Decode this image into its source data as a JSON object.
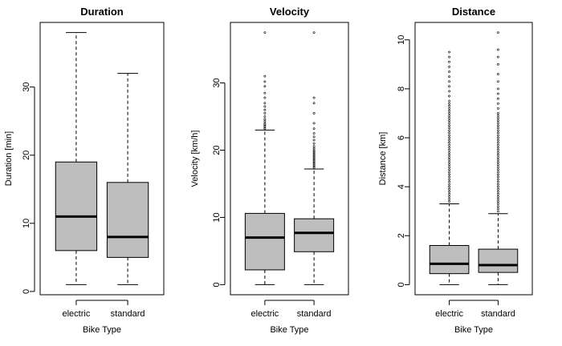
{
  "chart_data": [
    {
      "type": "boxplot",
      "title": "Duration",
      "xlabel": "Bike Type",
      "ylabel": "Duration [min]",
      "ylim": [
        0,
        40
      ],
      "yticks": [
        0,
        10,
        20,
        30
      ],
      "categories": [
        "electric",
        "standard"
      ],
      "color": "#bebebe",
      "boxes": [
        {
          "category": "electric",
          "whisker_low": 1,
          "q1": 6,
          "median": 11,
          "q3": 19,
          "whisker_high": 38,
          "outliers": []
        },
        {
          "category": "standard",
          "whisker_low": 1,
          "q1": 5,
          "median": 8,
          "q3": 16,
          "whisker_high": 32,
          "outliers": []
        }
      ]
    },
    {
      "type": "boxplot",
      "title": "Velocity",
      "xlabel": "Bike Type",
      "ylabel": "Velocity [km/h]",
      "ylim": [
        0,
        40
      ],
      "yticks": [
        0,
        10,
        20,
        30
      ],
      "categories": [
        "electric",
        "standard"
      ],
      "color": "#bebebe",
      "boxes": [
        {
          "category": "electric",
          "whisker_low": 0,
          "q1": 2.2,
          "median": 7,
          "q3": 10.6,
          "whisker_high": 23,
          "outliers": [
            23.2,
            23.4,
            23.6,
            23.8,
            24.0,
            24.3,
            24.6,
            25.0,
            25.5,
            26.0,
            26.5,
            27.0,
            27.8,
            28.5,
            29.5,
            30.2,
            31.0,
            37.5
          ]
        },
        {
          "category": "standard",
          "whisker_low": 0,
          "q1": 4.9,
          "median": 7.7,
          "q3": 9.8,
          "whisker_high": 17.2,
          "outliers": [
            17.4,
            17.6,
            17.8,
            18.0,
            18.2,
            18.4,
            18.6,
            18.8,
            19.0,
            19.2,
            19.4,
            19.6,
            19.8,
            20.0,
            20.3,
            20.6,
            21.0,
            21.5,
            22.0,
            22.5,
            23.2,
            24.0,
            25.5,
            27.0,
            27.8,
            37.5
          ]
        }
      ]
    },
    {
      "type": "boxplot",
      "title": "Distance",
      "xlabel": "Bike Type",
      "ylabel": "Distance [km]",
      "ylim": [
        0,
        10.5
      ],
      "yticks": [
        0,
        2,
        4,
        6,
        8,
        10
      ],
      "categories": [
        "electric",
        "standard"
      ],
      "color": "#bebebe",
      "boxes": [
        {
          "category": "electric",
          "whisker_low": 0,
          "q1": 0.45,
          "median": 0.85,
          "q3": 1.6,
          "whisker_high": 3.3,
          "outliers": [
            3.4,
            3.5,
            3.6,
            3.7,
            3.8,
            3.9,
            4.0,
            4.1,
            4.2,
            4.3,
            4.4,
            4.5,
            4.6,
            4.7,
            4.8,
            4.9,
            5.0,
            5.1,
            5.2,
            5.3,
            5.4,
            5.5,
            5.6,
            5.7,
            5.8,
            5.9,
            6.0,
            6.1,
            6.2,
            6.3,
            6.4,
            6.5,
            6.6,
            6.7,
            6.8,
            6.9,
            7.0,
            7.1,
            7.2,
            7.3,
            7.4,
            7.5,
            7.7,
            7.9,
            8.1,
            8.3,
            8.5,
            8.7,
            8.9,
            9.1,
            9.3,
            9.5
          ]
        },
        {
          "category": "standard",
          "whisker_low": 0,
          "q1": 0.5,
          "median": 0.8,
          "q3": 1.45,
          "whisker_high": 2.9,
          "outliers": [
            3.0,
            3.1,
            3.2,
            3.3,
            3.4,
            3.5,
            3.6,
            3.7,
            3.8,
            3.9,
            4.0,
            4.1,
            4.2,
            4.3,
            4.4,
            4.5,
            4.6,
            4.7,
            4.8,
            4.9,
            5.0,
            5.1,
            5.2,
            5.3,
            5.4,
            5.5,
            5.6,
            5.7,
            5.8,
            5.9,
            6.0,
            6.1,
            6.2,
            6.3,
            6.4,
            6.5,
            6.6,
            6.7,
            6.8,
            6.9,
            7.0,
            7.2,
            7.4,
            7.6,
            7.8,
            8.0,
            8.3,
            8.6,
            9.0,
            9.3,
            9.6,
            10.3
          ]
        }
      ]
    }
  ]
}
